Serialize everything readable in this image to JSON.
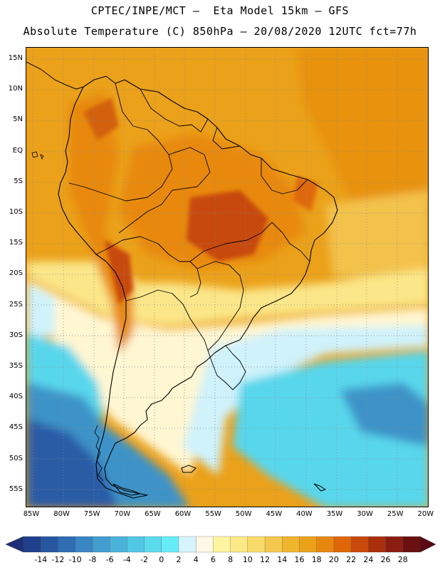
{
  "title_line1": "CPTEC/INPE/MCT –  Eta Model 15km – GFS",
  "title_line2": "Absolute Temperature (C) 850hPa – 20/08/2020 12UTC fct=77h",
  "lat_labels": [
    "15N",
    "10N",
    "5N",
    "EQ",
    "5S",
    "10S",
    "15S",
    "20S",
    "25S",
    "30S",
    "35S",
    "40S",
    "45S",
    "50S",
    "55S"
  ],
  "lon_labels": [
    "85W",
    "80W",
    "75W",
    "70W",
    "65W",
    "60W",
    "55W",
    "50W",
    "45W",
    "40W",
    "35W",
    "30W",
    "25W",
    "20W"
  ],
  "colorbar": {
    "labels": [
      "-14",
      "-12",
      "-10",
      "-8",
      "-6",
      "-4",
      "-2",
      "0",
      "2",
      "4",
      "6",
      "8",
      "10",
      "12",
      "14",
      "16",
      "18",
      "20",
      "22",
      "24",
      "26",
      "28"
    ],
    "colors": [
      "#1d3f8c",
      "#2756a0",
      "#2f6db3",
      "#3a86c4",
      "#449dcf",
      "#4bb3d9",
      "#52c7e3",
      "#5bdaed",
      "#66ecf6",
      "#d5f4fb",
      "#fff8e6",
      "#fff5a0",
      "#fbe985",
      "#f8da6a",
      "#f3c84c",
      "#efb52d",
      "#eba11a",
      "#e8870f",
      "#df6707",
      "#c9490a",
      "#aa2f0c",
      "#8a1d12",
      "#6a1010"
    ],
    "left_arrow_color": "#1d2f78",
    "right_arrow_color": "#5a0a14"
  },
  "colors": {
    "warm_deep": "#c8480b",
    "warm": "#e8890f",
    "orange": "#eda21a",
    "light_orange": "#f3c24c",
    "yellow": "#fbe789",
    "pale": "#fff6d2",
    "light_cyan": "#cff2fb",
    "cyan": "#59d7ec",
    "mid_blue": "#3e93c8",
    "deep_blue": "#2a5ba6"
  }
}
